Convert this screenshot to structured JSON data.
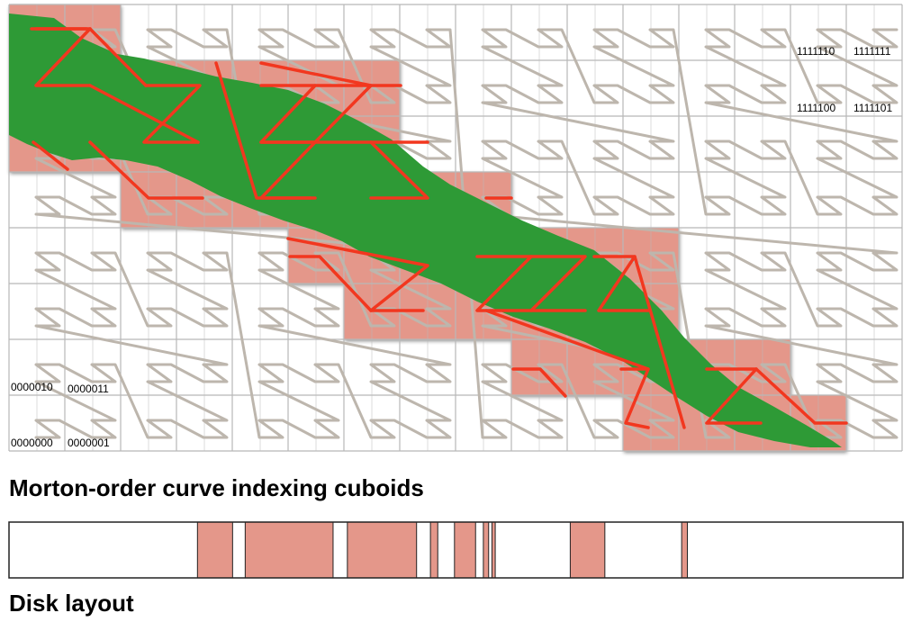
{
  "captions": {
    "curve": "Morton-order curve indexing cuboids",
    "disk": "Disk layout"
  },
  "code_labels": {
    "top_right_row1_a": "1111110",
    "top_right_row1_b": "1111111",
    "top_right_row2_a": "1111100",
    "top_right_row2_b": "1111101",
    "bottom_left_row1_a": "0000010",
    "bottom_left_row1_b": "0000011",
    "bottom_left_row2_a": "0000000",
    "bottom_left_row2_b": "0000001"
  },
  "grid": {
    "columns": 16,
    "rows": 8,
    "sub_cells_per_cuboid": 2
  },
  "colors": {
    "selected_cuboid": "#e4978a",
    "region": "#2e9a36",
    "curve_selected": "#f2371f",
    "curve_unselected": "#bdb6ad",
    "grid_line": "#b8b8b8"
  },
  "disk_layout": {
    "selected_segments": [
      [
        0.2108,
        0.2501
      ],
      [
        0.2642,
        0.3625
      ],
      [
        0.3785,
        0.4559
      ],
      [
        0.4714,
        0.4796
      ],
      [
        0.4983,
        0.5219
      ],
      [
        0.5306,
        0.5365
      ],
      [
        0.5402,
        0.5439
      ],
      [
        0.6278,
        0.6665
      ],
      [
        0.7524,
        0.7588
      ]
    ]
  }
}
